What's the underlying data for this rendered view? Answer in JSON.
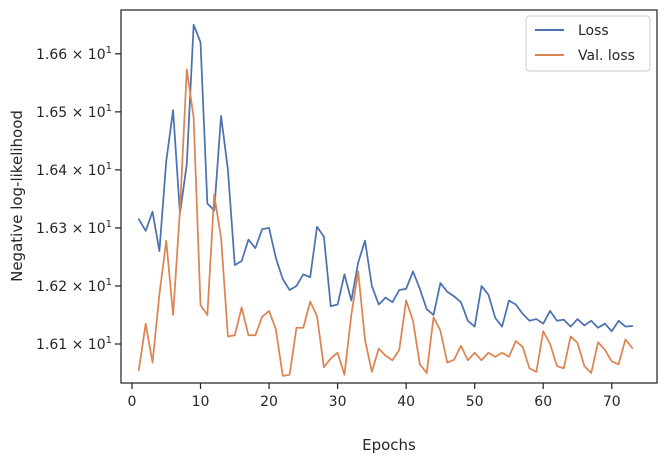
{
  "chart_data": {
    "type": "line",
    "xlabel": "Epochs",
    "ylabel": "Negative log-likelihood",
    "xlim": [
      -1.6,
      76.6
    ],
    "ylim": [
      16.0328,
      16.6755
    ],
    "xticks": [
      0,
      10,
      20,
      30,
      40,
      50,
      60,
      70
    ],
    "yticks": [
      {
        "value": 16.1,
        "mantissa": "1.61",
        "exponent": "1"
      },
      {
        "value": 16.2,
        "mantissa": "1.62",
        "exponent": "1"
      },
      {
        "value": 16.3,
        "mantissa": "1.63",
        "exponent": "1"
      },
      {
        "value": 16.4,
        "mantissa": "1.64",
        "exponent": "1"
      },
      {
        "value": 16.5,
        "mantissa": "1.65",
        "exponent": "1"
      },
      {
        "value": 16.6,
        "mantissa": "1.66",
        "exponent": "1"
      }
    ],
    "x": [
      1,
      2,
      3,
      4,
      5,
      6,
      7,
      8,
      9,
      10,
      11,
      12,
      13,
      14,
      15,
      16,
      17,
      18,
      19,
      20,
      21,
      22,
      23,
      24,
      25,
      26,
      27,
      28,
      29,
      30,
      31,
      32,
      33,
      34,
      35,
      36,
      37,
      38,
      39,
      40,
      41,
      42,
      43,
      44,
      45,
      46,
      47,
      48,
      49,
      50,
      51,
      52,
      53,
      54,
      55,
      56,
      57,
      58,
      59,
      60,
      61,
      62,
      63,
      64,
      65,
      66,
      67,
      68,
      69,
      70,
      71,
      72,
      73
    ],
    "series": [
      {
        "name": "Loss",
        "color": "#4c72b0",
        "values": [
          16.315,
          16.295,
          16.328,
          16.26,
          16.415,
          16.503,
          16.325,
          16.41,
          16.65,
          16.62,
          16.342,
          16.33,
          16.493,
          16.4,
          16.236,
          16.243,
          16.28,
          16.265,
          16.298,
          16.3,
          16.248,
          16.212,
          16.193,
          16.2,
          16.22,
          16.215,
          16.302,
          16.285,
          16.165,
          16.168,
          16.22,
          16.175,
          16.24,
          16.278,
          16.2,
          16.168,
          16.18,
          16.172,
          16.193,
          16.195,
          16.225,
          16.195,
          16.16,
          16.15,
          16.205,
          16.19,
          16.182,
          16.172,
          16.14,
          16.13,
          16.2,
          16.185,
          16.145,
          16.13,
          16.175,
          16.168,
          16.152,
          16.14,
          16.143,
          16.135,
          16.157,
          16.14,
          16.142,
          16.13,
          16.143,
          16.132,
          16.14,
          16.128,
          16.135,
          16.122,
          16.14,
          16.13,
          16.131
        ]
      },
      {
        "name": "Val. loss",
        "color": "#dd8452",
        "values": [
          16.055,
          16.135,
          16.068,
          16.185,
          16.278,
          16.15,
          16.33,
          16.573,
          16.49,
          16.167,
          16.15,
          16.357,
          16.283,
          16.113,
          16.115,
          16.163,
          16.115,
          16.115,
          16.147,
          16.157,
          16.125,
          16.045,
          16.047,
          16.128,
          16.128,
          16.173,
          16.148,
          16.06,
          16.075,
          16.085,
          16.047,
          16.15,
          16.225,
          16.107,
          16.052,
          16.092,
          16.08,
          16.072,
          16.09,
          16.175,
          16.14,
          16.065,
          16.05,
          16.146,
          16.123,
          16.068,
          16.073,
          16.097,
          16.072,
          16.085,
          16.072,
          16.085,
          16.078,
          16.085,
          16.078,
          16.105,
          16.095,
          16.058,
          16.052,
          16.122,
          16.1,
          16.062,
          16.058,
          16.113,
          16.102,
          16.062,
          16.05,
          16.103,
          16.09,
          16.07,
          16.065,
          16.108,
          16.093
        ]
      }
    ],
    "legend": {
      "position": "top-right"
    },
    "grid": false
  }
}
